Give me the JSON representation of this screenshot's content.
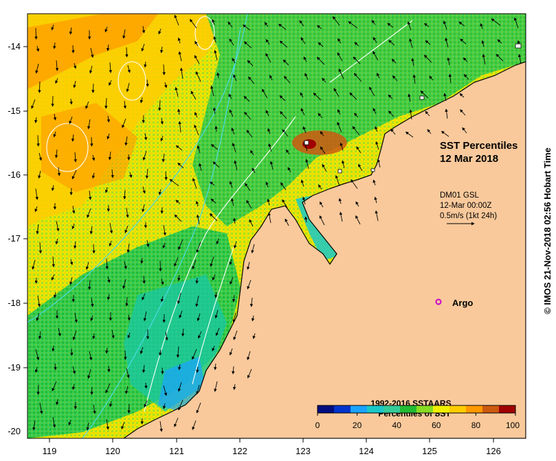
{
  "title": "SST Percentiles",
  "date": "12 Mar 2018",
  "current_info": {
    "source": "DM01 GSL",
    "time": "12-Mar 00:00Z",
    "scale": "0.5m/s (1kt 24h)"
  },
  "argo_label": "Argo",
  "legend": {
    "title_line1": "1992-2016 SSTAARS",
    "title_line2": "Percentiles of SST",
    "tick_labels": [
      "0",
      "20",
      "40",
      "60",
      "80",
      "100"
    ],
    "colors": [
      "#000d80",
      "#0033cc",
      "#1aa3ff",
      "#1ac8c8",
      "#33cc99",
      "#22bb33",
      "#88dd22",
      "#f0f000",
      "#ffcc00",
      "#ff9900",
      "#cc5a10",
      "#a00000"
    ]
  },
  "axes": {
    "lon_ticks": [
      "119",
      "120",
      "121",
      "122",
      "123",
      "124",
      "125",
      "126"
    ],
    "lat_ticks": [
      "-14",
      "-15",
      "-16",
      "-17",
      "-18",
      "-19",
      "-20"
    ]
  },
  "credit": "© IMOS 21-Nov-2018 02:56 Hobart Time",
  "colors": {
    "land": "#f9c99b",
    "argo_marker": "#cc00cc",
    "contour": "#ffffff",
    "bathymetry": "#4dd9e6"
  }
}
